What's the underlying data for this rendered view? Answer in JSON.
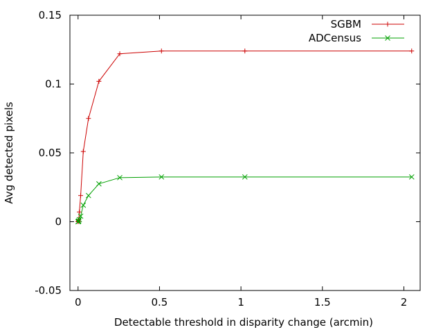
{
  "chart_data": {
    "type": "line",
    "title": "",
    "xlabel": "Detectable threshold in disparity change (arcmin)",
    "ylabel": "Avg detected pixels",
    "xlim": [
      -0.05,
      2.1
    ],
    "ylim": [
      -0.05,
      0.15
    ],
    "xticks": [
      0,
      0.5,
      1,
      1.5,
      2
    ],
    "xtick_labels": [
      "0",
      "0.5",
      "1",
      "1.5",
      "2"
    ],
    "yticks": [
      -0.05,
      0,
      0.05,
      0.1,
      0.15
    ],
    "ytick_labels": [
      "-0.05",
      "0",
      "0.05",
      "0.1",
      "0.15"
    ],
    "grid": false,
    "legend_position": "top-right",
    "series": [
      {
        "name": "SGBM",
        "color": "#cc0000",
        "marker": "plus",
        "x": [
          0,
          0.002,
          0.004,
          0.008,
          0.016,
          0.032,
          0.064,
          0.128,
          0.256,
          0.512,
          1.024,
          2.048
        ],
        "y": [
          0,
          0.0005,
          0.0015,
          0.007,
          0.019,
          0.051,
          0.075,
          0.102,
          0.122,
          0.124,
          0.124,
          0.124
        ]
      },
      {
        "name": "ADCensus",
        "color": "#00a000",
        "marker": "cross",
        "x": [
          0,
          0.002,
          0.004,
          0.008,
          0.016,
          0.032,
          0.064,
          0.128,
          0.256,
          0.512,
          1.024,
          2.048
        ],
        "y": [
          0,
          0.0002,
          0.0005,
          0.0015,
          0.004,
          0.012,
          0.019,
          0.0275,
          0.032,
          0.0325,
          0.0325,
          0.0325
        ]
      }
    ]
  }
}
